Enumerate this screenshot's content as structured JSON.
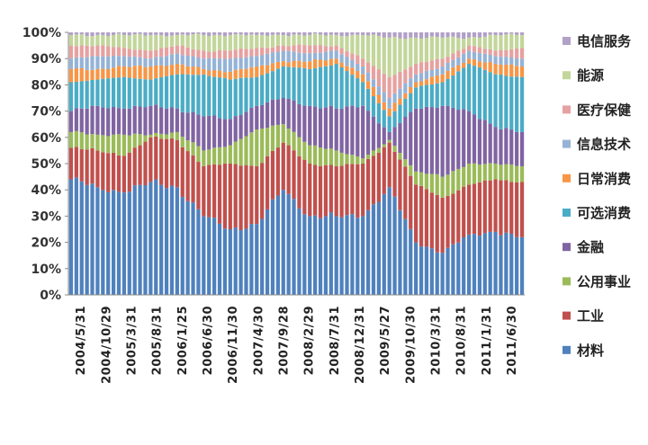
{
  "chart_data": {
    "type": "bar",
    "stacked": true,
    "normalized": true,
    "y_ticks": [
      "0%",
      "10%",
      "20%",
      "30%",
      "40%",
      "50%",
      "60%",
      "70%",
      "80%",
      "90%",
      "100%"
    ],
    "ylim": [
      0,
      100
    ],
    "x_tick_labels": [
      "2004/5/31",
      "2004/10/29",
      "2005/3/31",
      "2005/8/31",
      "2006/1/25",
      "2006/6/30",
      "2006/11/30",
      "2007/4/30",
      "2007/9/28",
      "2008/2/29",
      "2008/7/31",
      "2008/12/31",
      "2009/5/27",
      "2009/10/30",
      "2010/3/31",
      "2010/8/31",
      "2011/1/31",
      "2011/6/30"
    ],
    "legend_position": "right",
    "series": [
      {
        "name": "材料",
        "color": "#4f81bd",
        "values": [
          44,
          41,
          39,
          43,
          41,
          30,
          25,
          27,
          40,
          30,
          30,
          30,
          41,
          20,
          16,
          23,
          24,
          22
        ]
      },
      {
        "name": "工业",
        "color": "#c0504d",
        "values": [
          12,
          14,
          14,
          17,
          18,
          19,
          25,
          22,
          18,
          20,
          19,
          20,
          17,
          22,
          21,
          19,
          20,
          21
        ]
      },
      {
        "name": "公用事业",
        "color": "#9bbb59",
        "values": [
          6,
          6,
          8,
          1,
          3,
          6,
          7,
          14,
          7,
          7,
          6,
          2,
          1,
          5,
          8,
          8,
          6,
          6
        ]
      },
      {
        "name": "金融",
        "color": "#8064a2",
        "values": [
          8,
          11,
          10,
          11,
          9,
          13,
          10,
          9,
          10,
          15,
          16,
          20,
          3,
          24,
          27,
          20,
          14,
          13
        ]
      },
      {
        "name": "可选消费",
        "color": "#4bacc6",
        "values": [
          11,
          10,
          12,
          10,
          13,
          16,
          15,
          11,
          12,
          14,
          17,
          9,
          6,
          8,
          9,
          18,
          20,
          21
        ]
      },
      {
        "name": "日常消费",
        "color": "#f79646",
        "values": [
          5,
          4,
          4,
          5,
          4,
          2,
          3,
          4,
          2,
          3,
          2,
          3,
          3,
          2,
          3,
          2,
          4,
          4
        ]
      },
      {
        "name": "信息技术",
        "color": "#95b3d7",
        "values": [
          4,
          5,
          4,
          3,
          4,
          4,
          5,
          4,
          4,
          3,
          3,
          3,
          4,
          3,
          3,
          3,
          3,
          3
        ]
      },
      {
        "name": "医疗保健",
        "color": "#e6a1a1",
        "values": [
          5,
          4,
          3,
          3,
          3,
          3,
          3,
          3,
          2,
          3,
          2,
          3,
          8,
          4,
          3,
          2,
          2,
          4
        ]
      },
      {
        "name": "能源",
        "color": "#c3d69b",
        "values": [
          4,
          4,
          5,
          6,
          4,
          6,
          6,
          5,
          4,
          4,
          4,
          9,
          15,
          10,
          8,
          3,
          6,
          5
        ]
      },
      {
        "name": "电信服务",
        "color": "#b1a0c7",
        "values": [
          1,
          1,
          1,
          1,
          1,
          1,
          1,
          1,
          1,
          1,
          1,
          1,
          2,
          2,
          2,
          2,
          1,
          1
        ]
      }
    ]
  }
}
